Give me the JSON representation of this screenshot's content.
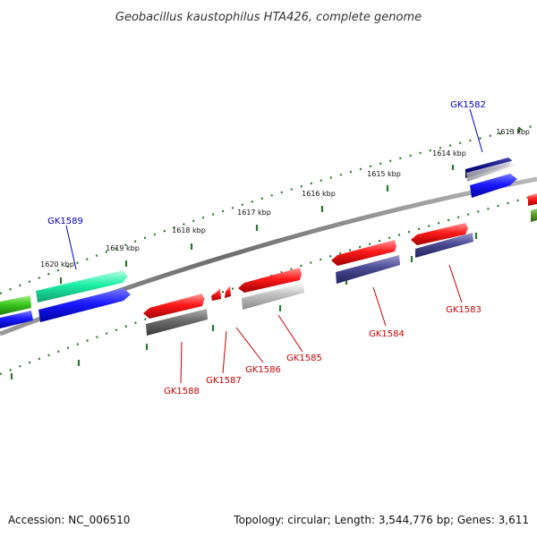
{
  "title": "Geobacillus kaustophilus HTA426, complete genome",
  "footer": {
    "accession_label": "Accession:",
    "accession": "NC_006510",
    "topology_label": "Topology:",
    "topology": "circular",
    "length_label": "Length:",
    "length": "3,544,776 bp",
    "genes_label": "Genes:",
    "genes": "3,611"
  },
  "kbp_ticks": [
    "1613 kbp",
    "1614 kbp",
    "1615 kbp",
    "1616 kbp",
    "1617 kbp",
    "1618 kbp",
    "1619 kbp",
    "1620 kbp"
  ],
  "genes": [
    {
      "id": "GK1582",
      "strand": "forward",
      "color": "#000080"
    },
    {
      "id": "GK1583",
      "strand": "reverse",
      "color": "#ff0000"
    },
    {
      "id": "GK1584",
      "strand": "reverse",
      "color": "#ff0000"
    },
    {
      "id": "GK1585",
      "strand": "reverse",
      "color": "#ff0000"
    },
    {
      "id": "GK1586",
      "strand": "reverse",
      "color": "#ff0000"
    },
    {
      "id": "GK1587",
      "strand": "reverse",
      "color": "#ff0000"
    },
    {
      "id": "GK1588",
      "strand": "reverse",
      "color": "#ff0000"
    },
    {
      "id": "GK1589",
      "strand": "forward",
      "color": "#00ff99"
    }
  ],
  "colors": {
    "forward_label": "#0000cc",
    "reverse_label": "#cc0000",
    "backbone": "#777777",
    "tick": "#2a7a2a"
  }
}
